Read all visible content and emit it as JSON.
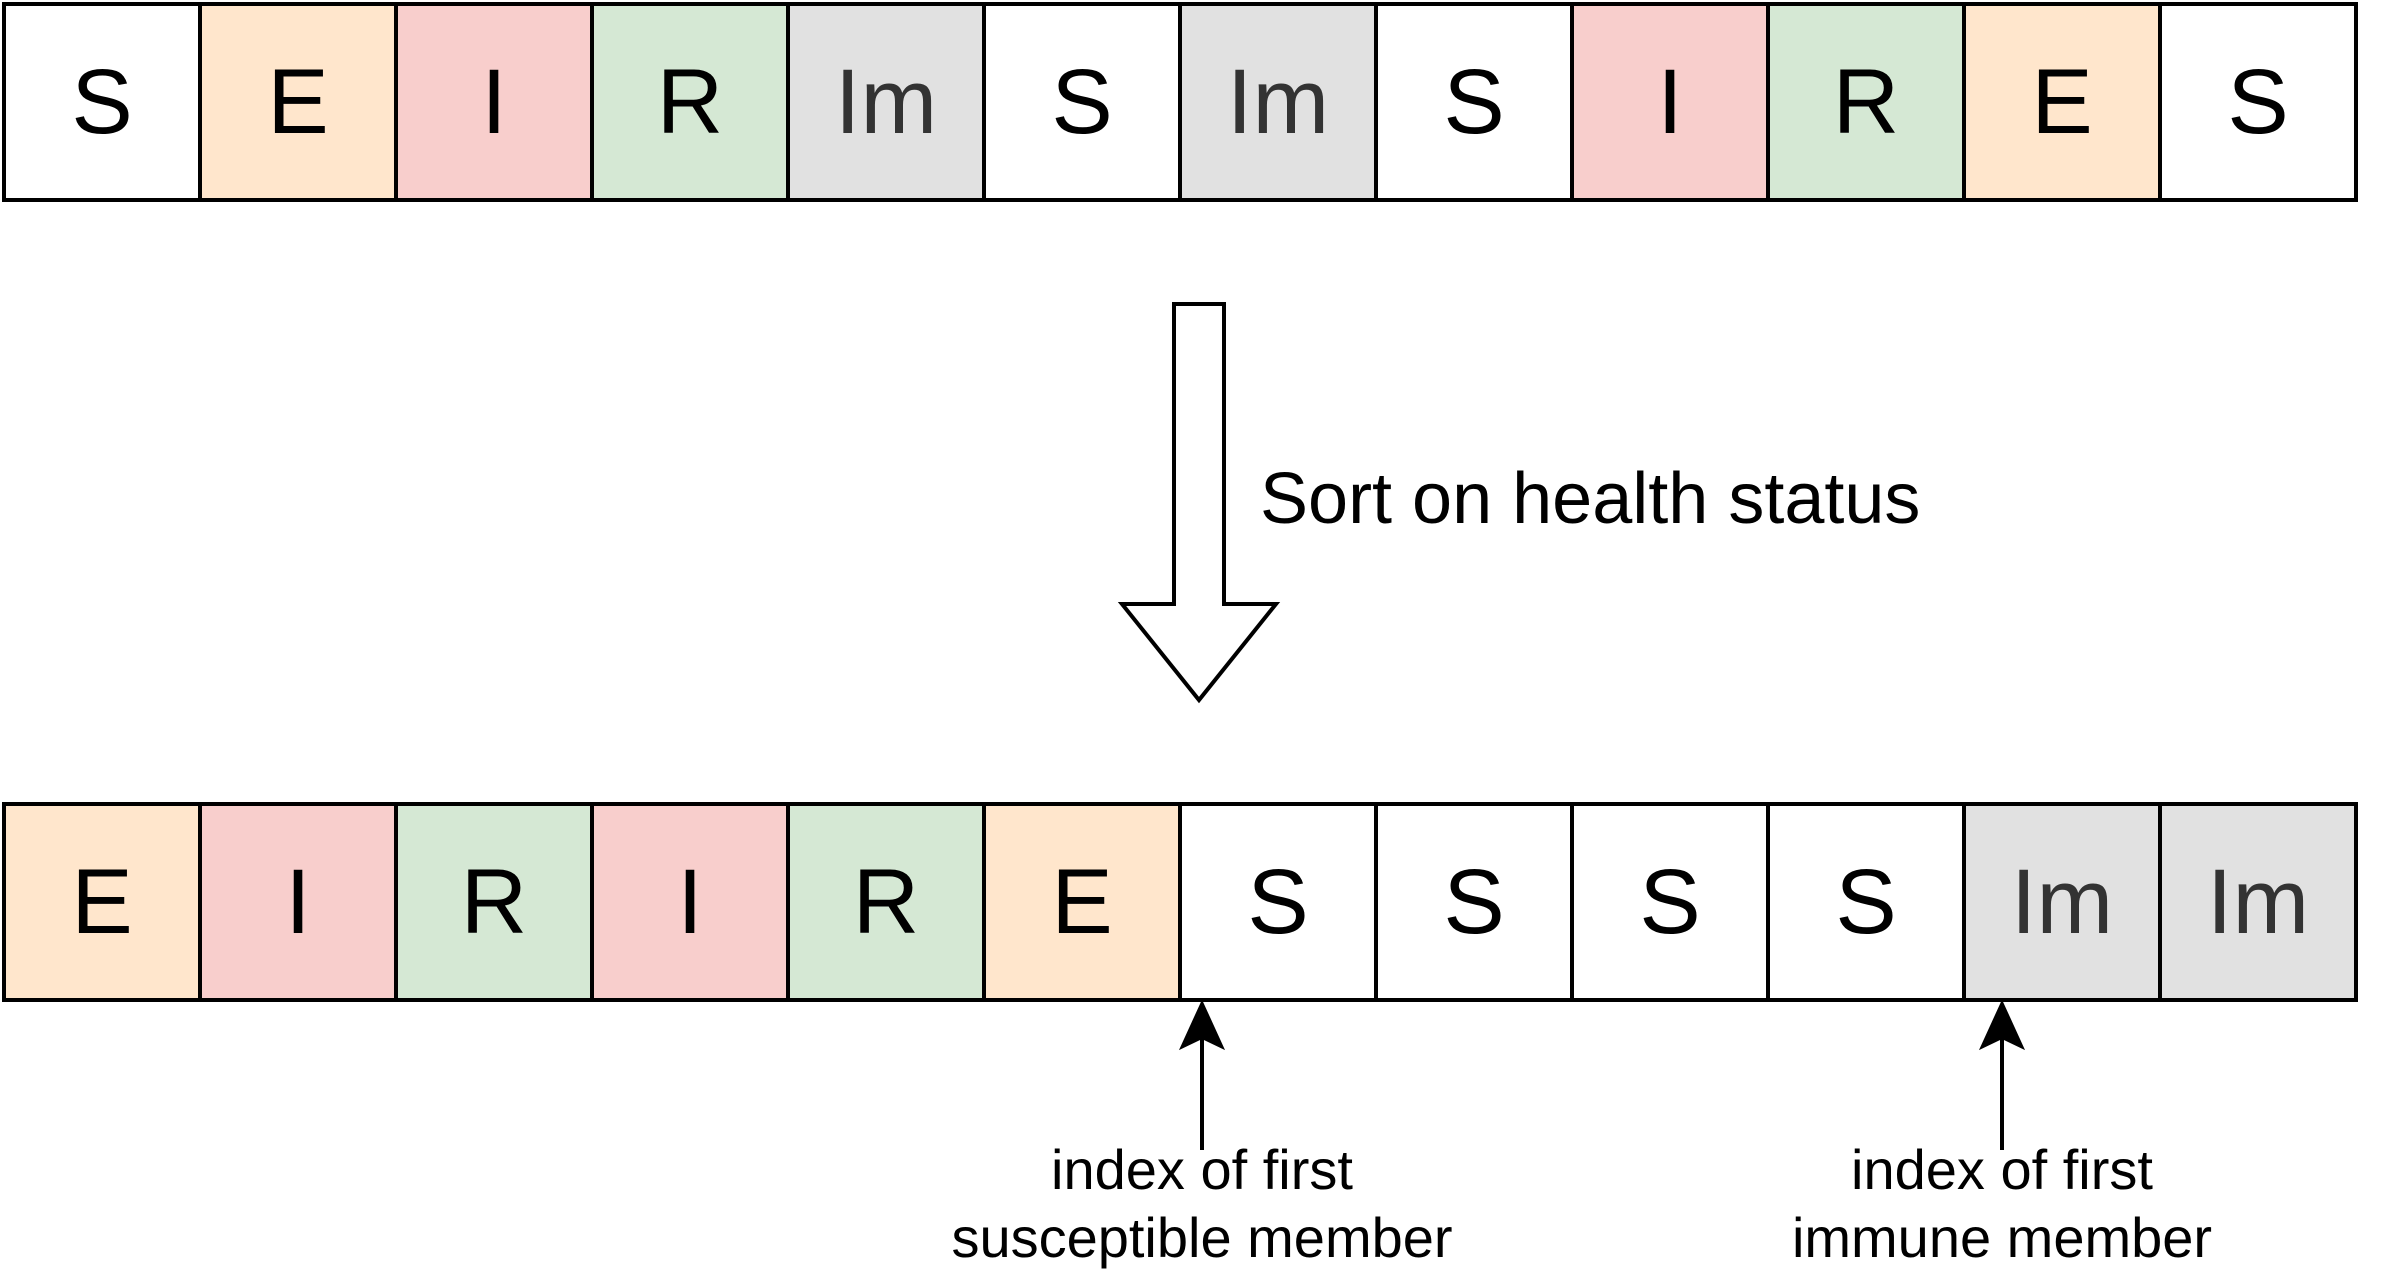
{
  "colors": {
    "S": "#ffffff",
    "E": "#ffe6cc",
    "I": "#f8cecc",
    "R": "#d5e8d4",
    "Im": "#e1e1e1",
    "border": "#000000"
  },
  "before_row": [
    "S",
    "E",
    "I",
    "R",
    "Im",
    "S",
    "Im",
    "S",
    "I",
    "R",
    "E",
    "S"
  ],
  "after_row": [
    "E",
    "I",
    "R",
    "I",
    "R",
    "E",
    "S",
    "S",
    "S",
    "S",
    "Im",
    "Im"
  ],
  "sort_arrow": {
    "label": "Sort on health status"
  },
  "pointers": {
    "susceptible": {
      "line1": "index of first",
      "line2": "susceptible member"
    },
    "immune": {
      "line1": "index of first",
      "line2": "immune member"
    }
  }
}
